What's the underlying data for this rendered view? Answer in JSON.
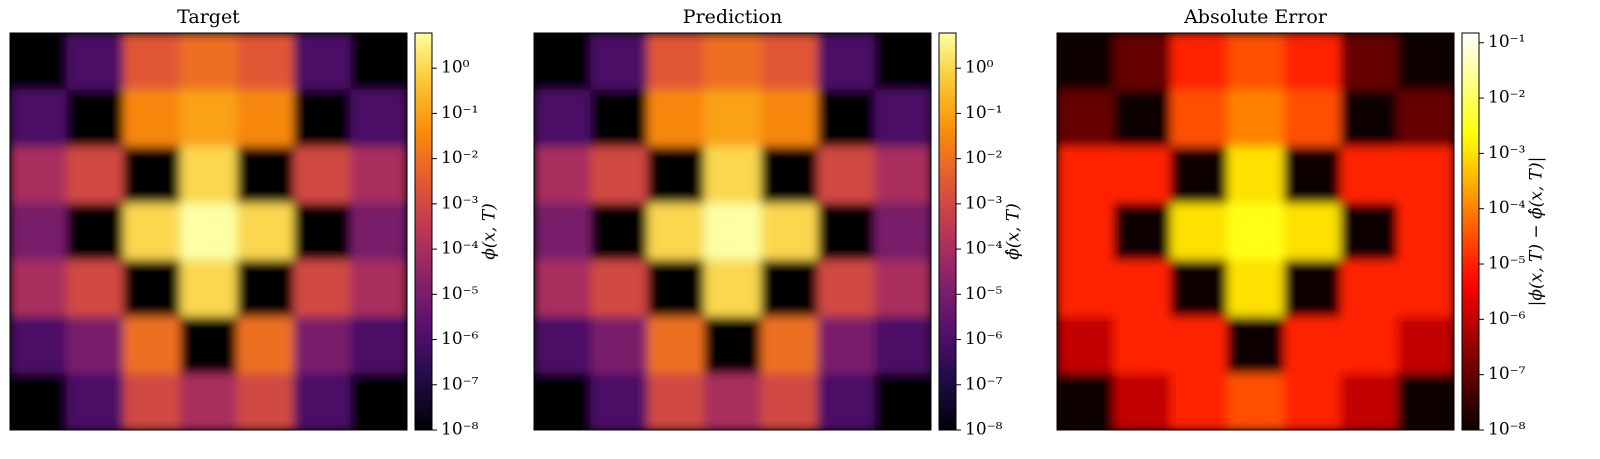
{
  "chart_data": [
    {
      "type": "heatmap",
      "title": "Target",
      "colorbar_label": "ϕ(x, T)",
      "colormap": "inferno",
      "log_scale": true,
      "clim": [
        1e-08,
        6
      ],
      "cticks": [
        {
          "value": 1,
          "label": "10⁰"
        },
        {
          "value": 0.1,
          "label": "10⁻¹"
        },
        {
          "value": 0.01,
          "label": "10⁻²"
        },
        {
          "value": 0.001,
          "label": "10⁻³"
        },
        {
          "value": 0.0001,
          "label": "10⁻⁴"
        },
        {
          "value": 1e-05,
          "label": "10⁻⁵"
        },
        {
          "value": 1e-06,
          "label": "10⁻⁶"
        },
        {
          "value": 1e-07,
          "label": "10⁻⁷"
        },
        {
          "value": 1e-08,
          "label": "10⁻⁸"
        }
      ],
      "z": [
        [
          1e-08,
          1e-06,
          0.003,
          0.01,
          0.003,
          1e-06,
          1e-08
        ],
        [
          1e-06,
          1e-08,
          0.03,
          0.1,
          0.03,
          1e-08,
          1e-06
        ],
        [
          0.0001,
          0.001,
          1e-08,
          1,
          1e-08,
          0.001,
          0.0001
        ],
        [
          1e-05,
          1e-08,
          1,
          6,
          1,
          1e-08,
          1e-05
        ],
        [
          0.0001,
          0.001,
          1e-08,
          1,
          1e-08,
          0.001,
          0.0001
        ],
        [
          1e-06,
          1e-05,
          0.01,
          1e-08,
          0.01,
          1e-05,
          1e-06
        ],
        [
          1e-08,
          1e-06,
          0.001,
          0.0001,
          0.001,
          1e-06,
          1e-08
        ]
      ]
    },
    {
      "type": "heatmap",
      "title": "Prediction",
      "colorbar_label": "ϕ̂(x, T)",
      "colormap": "inferno",
      "log_scale": true,
      "clim": [
        1e-08,
        6
      ],
      "cticks": [
        {
          "value": 1,
          "label": "10⁰"
        },
        {
          "value": 0.1,
          "label": "10⁻¹"
        },
        {
          "value": 0.01,
          "label": "10⁻²"
        },
        {
          "value": 0.001,
          "label": "10⁻³"
        },
        {
          "value": 0.0001,
          "label": "10⁻⁴"
        },
        {
          "value": 1e-05,
          "label": "10⁻⁵"
        },
        {
          "value": 1e-06,
          "label": "10⁻⁶"
        },
        {
          "value": 1e-07,
          "label": "10⁻⁷"
        },
        {
          "value": 1e-08,
          "label": "10⁻⁸"
        }
      ],
      "z": [
        [
          1e-08,
          1e-06,
          0.003,
          0.01,
          0.003,
          1e-06,
          1e-08
        ],
        [
          1e-06,
          1e-08,
          0.03,
          0.1,
          0.03,
          1e-08,
          1e-06
        ],
        [
          0.0001,
          0.001,
          1e-08,
          1,
          1e-08,
          0.001,
          0.0001
        ],
        [
          1e-05,
          1e-08,
          1,
          6,
          1,
          1e-08,
          1e-05
        ],
        [
          0.0001,
          0.001,
          1e-08,
          1,
          1e-08,
          0.001,
          0.0001
        ],
        [
          1e-06,
          1e-05,
          0.01,
          1e-08,
          0.01,
          1e-05,
          1e-06
        ],
        [
          1e-08,
          1e-06,
          0.001,
          0.0001,
          0.001,
          1e-06,
          1e-08
        ]
      ]
    },
    {
      "type": "heatmap",
      "title": "Absolute Error",
      "colorbar_label": "|ϕ(x, T) − ϕ̂(x, T)|",
      "colormap": "hot",
      "log_scale": true,
      "clim": [
        1e-08,
        0.15
      ],
      "cticks": [
        {
          "value": 0.1,
          "label": "10⁻¹"
        },
        {
          "value": 0.01,
          "label": "10⁻²"
        },
        {
          "value": 0.001,
          "label": "10⁻³"
        },
        {
          "value": 0.0001,
          "label": "10⁻⁴"
        },
        {
          "value": 1e-05,
          "label": "10⁻⁵"
        },
        {
          "value": 1e-06,
          "label": "10⁻⁶"
        },
        {
          "value": 1e-07,
          "label": "10⁻⁷"
        },
        {
          "value": 1e-08,
          "label": "10⁻⁸"
        }
      ],
      "z": [
        [
          1e-08,
          1e-07,
          1e-05,
          3e-05,
          1e-05,
          1e-07,
          1e-08
        ],
        [
          1e-07,
          1e-08,
          3e-05,
          0.0001,
          3e-05,
          1e-08,
          1e-07
        ],
        [
          1e-05,
          1e-05,
          1e-08,
          0.001,
          1e-08,
          1e-05,
          1e-05
        ],
        [
          1e-05,
          1e-08,
          0.001,
          0.003,
          0.001,
          1e-08,
          1e-05
        ],
        [
          1e-05,
          1e-05,
          1e-08,
          0.001,
          1e-08,
          1e-05,
          1e-05
        ],
        [
          1e-06,
          1e-05,
          1e-05,
          1e-08,
          1e-05,
          1e-05,
          1e-06
        ],
        [
          1e-08,
          1e-06,
          1e-05,
          3e-05,
          1e-05,
          1e-06,
          1e-08
        ]
      ]
    }
  ]
}
